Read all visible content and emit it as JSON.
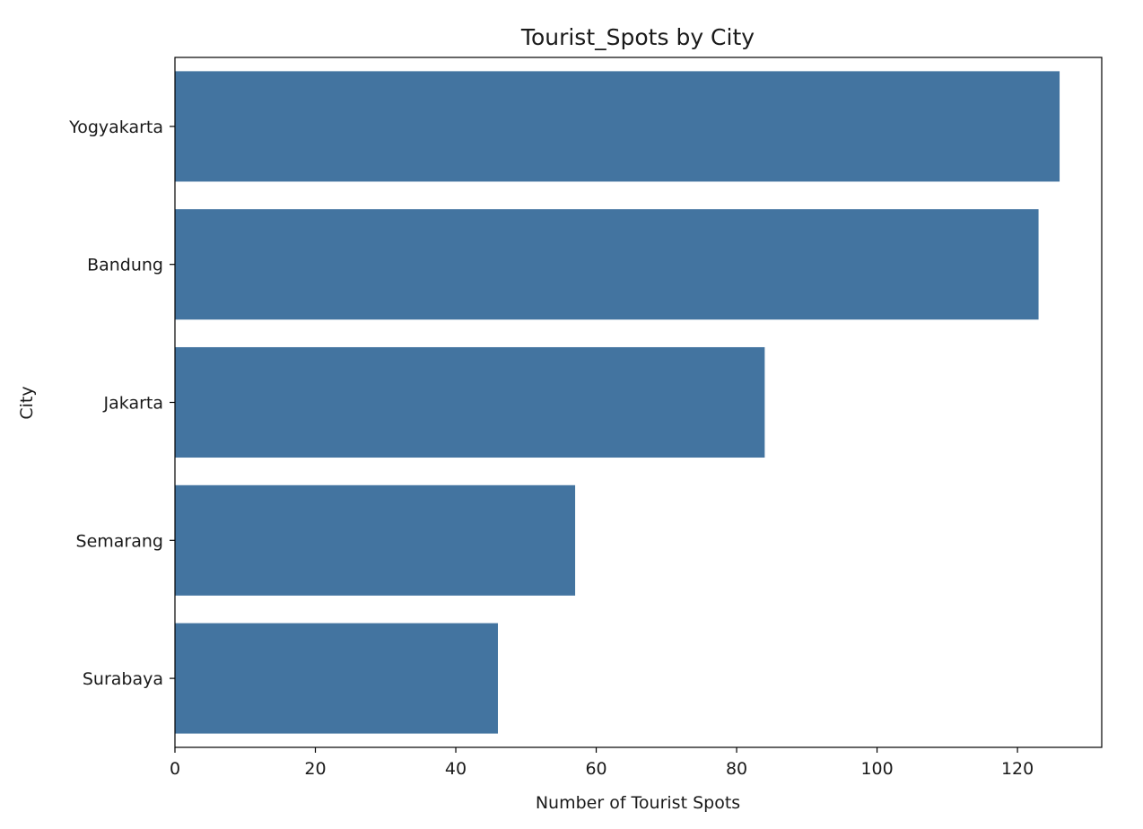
{
  "chart_data": {
    "type": "bar",
    "orientation": "horizontal",
    "title": "Tourist_Spots by City",
    "xlabel": "Number of Tourist Spots",
    "ylabel": "City",
    "categories": [
      "Yogyakarta",
      "Bandung",
      "Jakarta",
      "Semarang",
      "Surabaya"
    ],
    "values": [
      126,
      123,
      84,
      57,
      46
    ],
    "xlim": [
      0,
      132
    ],
    "xticks": [
      0,
      20,
      40,
      60,
      80,
      100,
      120
    ],
    "bar_color": "#4374a0",
    "grid": false,
    "legend": "none"
  }
}
